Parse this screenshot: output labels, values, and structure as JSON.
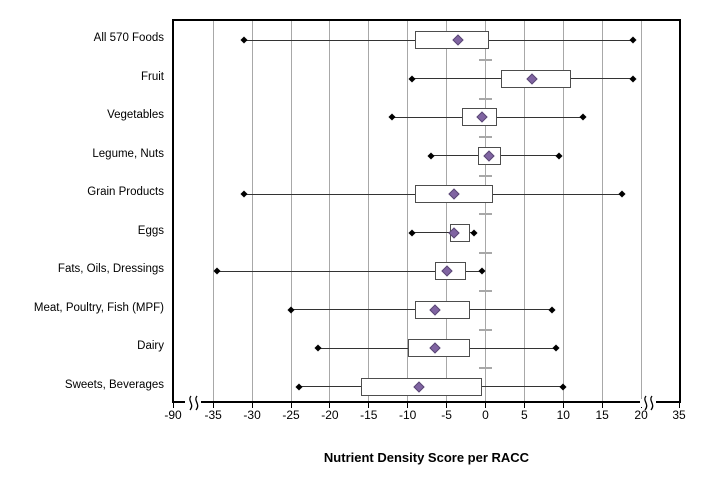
{
  "chart_data": {
    "type": "boxplot",
    "orientation": "horizontal",
    "title": "",
    "xlabel": "Nutrient Density Score per RACC",
    "ylabel": "",
    "x_tick_values": [
      -90,
      -35,
      -30,
      -25,
      -20,
      -15,
      -10,
      -5,
      0,
      5,
      10,
      15,
      20,
      35
    ],
    "x_tick_labels": [
      "-90",
      "-35",
      "-30",
      "-25",
      "-20",
      "-15",
      "-10",
      "-5",
      "0",
      "5",
      "10",
      "15",
      "20",
      "35"
    ],
    "xlim_main": [
      -35,
      20
    ],
    "axis_breaks": [
      {
        "between": [
          "-90",
          "-35"
        ]
      },
      {
        "between": [
          "20",
          "35"
        ]
      }
    ],
    "grid": true,
    "legend": "none",
    "categories": [
      "All 570 Foods",
      "Fruit",
      "Vegetables",
      "Legume, Nuts",
      "Grain Products",
      "Eggs",
      "Fats, Oils, Dressings",
      "Meat, Poultry, Fish (MPF)",
      "Dairy",
      "Sweets, Beverages"
    ],
    "series": [
      {
        "name": "All 570 Foods",
        "min": -31,
        "q1": -9,
        "mean": -3.5,
        "q3": 0.5,
        "max": 19
      },
      {
        "name": "Fruit",
        "min": -9.5,
        "q1": 2,
        "mean": 6,
        "q3": 11,
        "max": 19
      },
      {
        "name": "Vegetables",
        "min": -12,
        "q1": -3,
        "mean": -0.5,
        "q3": 1.5,
        "max": 12.5
      },
      {
        "name": "Legume, Nuts",
        "min": -7,
        "q1": -1,
        "mean": 0.5,
        "q3": 2,
        "max": 9.5
      },
      {
        "name": "Grain Products",
        "min": -31,
        "q1": -9,
        "mean": -4,
        "q3": 1,
        "max": 17.5
      },
      {
        "name": "Eggs",
        "min": -9.5,
        "q1": -4.5,
        "mean": -4,
        "q3": -2,
        "max": -1.5
      },
      {
        "name": "Fats, Oils, Dressings",
        "min": -34.5,
        "q1": -6.5,
        "mean": -5,
        "q3": -2.5,
        "max": -0.5
      },
      {
        "name": "Meat, Poultry, Fish (MPF)",
        "min": -25,
        "q1": -9,
        "mean": -6.5,
        "q3": -2,
        "max": 8.5
      },
      {
        "name": "Dairy",
        "min": -21.5,
        "q1": -10,
        "mean": -6.5,
        "q3": -2,
        "max": 9
      },
      {
        "name": "Sweets, Beverages",
        "min": -24,
        "q1": -16,
        "mean": -8.5,
        "q3": -0.5,
        "max": 10
      }
    ],
    "colors": {
      "mean_marker_fill": "#8064A2",
      "mean_marker_border": "#5A4875",
      "box_border": "#4D4D4D",
      "box_fill": "#FFFFFF",
      "whisker": "#333333",
      "whisker_cap": "#000000",
      "gridline": "#A8A8A8",
      "axis": "#000000"
    }
  }
}
